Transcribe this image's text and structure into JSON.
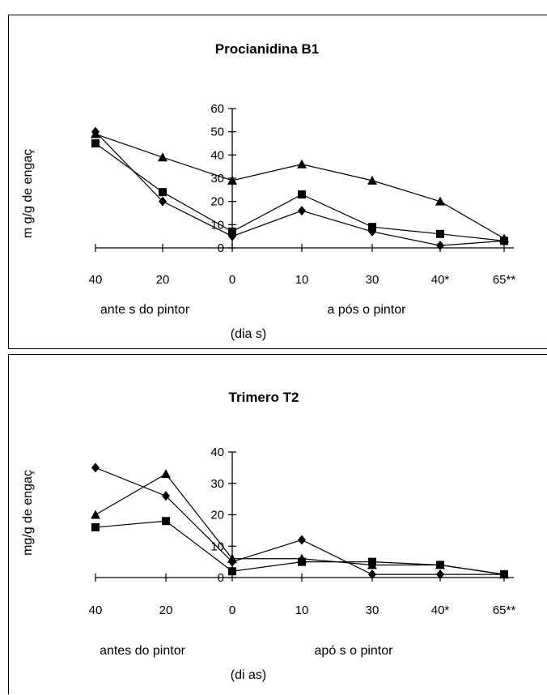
{
  "chart_data": [
    {
      "type": "line",
      "title": "Procianidina B1",
      "ylabel": "m g/g de engaç",
      "xlabel": "(dia s)",
      "group_labels": [
        "ante s do pintor",
        "a pós  o pintor"
      ],
      "categories": [
        "40",
        "20",
        "0",
        "10",
        "30",
        "40*",
        "65**"
      ],
      "ylim": [
        0,
        60
      ],
      "yticks": [
        "0",
        "10",
        "20",
        "30",
        "40",
        "50",
        "60"
      ],
      "grid": false,
      "legend": "none",
      "series": [
        {
          "marker": "triangle",
          "values": [
            49,
            39,
            29,
            36,
            29,
            20,
            4
          ]
        },
        {
          "marker": "square",
          "values": [
            45,
            24,
            7,
            23,
            9,
            6,
            3
          ]
        },
        {
          "marker": "diamond",
          "values": [
            50,
            20,
            5,
            16,
            7,
            1,
            3
          ]
        }
      ]
    },
    {
      "type": "line",
      "title": "Trimero T2",
      "ylabel": "mg/g de engaç",
      "xlabel": "(di as)",
      "group_labels": [
        "antes do pintor",
        "apó s o  pintor"
      ],
      "categories": [
        "40",
        "20",
        "0",
        "10",
        "30",
        "40*",
        "65**"
      ],
      "ylim": [
        0,
        40
      ],
      "yticks": [
        "0",
        "10",
        "20",
        "30",
        "40"
      ],
      "grid": false,
      "legend": "none",
      "series": [
        {
          "marker": "diamond",
          "values": [
            35,
            26,
            5,
            12,
            1,
            1,
            1
          ]
        },
        {
          "marker": "triangle",
          "values": [
            20,
            33,
            6,
            6,
            4,
            4,
            1
          ]
        },
        {
          "marker": "square",
          "values": [
            16,
            18,
            2,
            5,
            5,
            4,
            1
          ]
        }
      ]
    }
  ]
}
